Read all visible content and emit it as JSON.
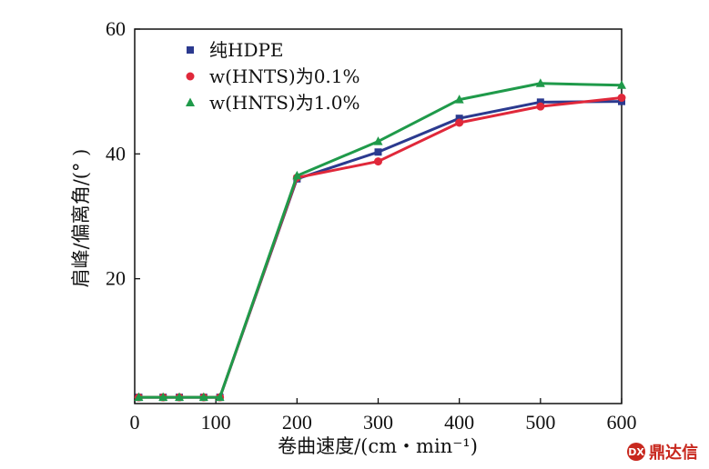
{
  "chart_data": {
    "type": "line",
    "xlabel": "卷曲速度/(cm・min⁻¹)",
    "ylabel": "肩峰/偏离角/(°  )",
    "xlim": [
      0,
      600
    ],
    "ylim": [
      0,
      60
    ],
    "xticks": [
      0,
      100,
      200,
      300,
      400,
      500,
      600
    ],
    "yticks": [
      20,
      40,
      60
    ],
    "grid": false,
    "legend_position": "top-left",
    "series": [
      {
        "name": "纯HDPE",
        "marker": "square",
        "color": "#2b3a8f",
        "x": [
          5,
          35,
          55,
          85,
          105,
          200,
          300,
          400,
          500,
          600
        ],
        "y": [
          1,
          1,
          1,
          1,
          1,
          36,
          40.3,
          45.7,
          48.3,
          48.4
        ]
      },
      {
        "name": "w(HNTS)为0.1%",
        "marker": "circle",
        "color": "#e0283a",
        "x": [
          5,
          35,
          55,
          85,
          105,
          200,
          300,
          400,
          500,
          600
        ],
        "y": [
          1,
          1,
          1,
          1,
          1,
          36.2,
          38.8,
          45,
          47.6,
          49
        ]
      },
      {
        "name": "w(HNTS)为1.0%",
        "marker": "triangle",
        "color": "#1f9a4a",
        "x": [
          5,
          35,
          55,
          85,
          105,
          200,
          300,
          400,
          500,
          600
        ],
        "y": [
          1,
          1,
          1,
          1,
          1,
          36.5,
          42,
          48.7,
          51.3,
          51
        ]
      }
    ]
  },
  "watermark": {
    "text": "鼎达信",
    "logo": "DX"
  }
}
